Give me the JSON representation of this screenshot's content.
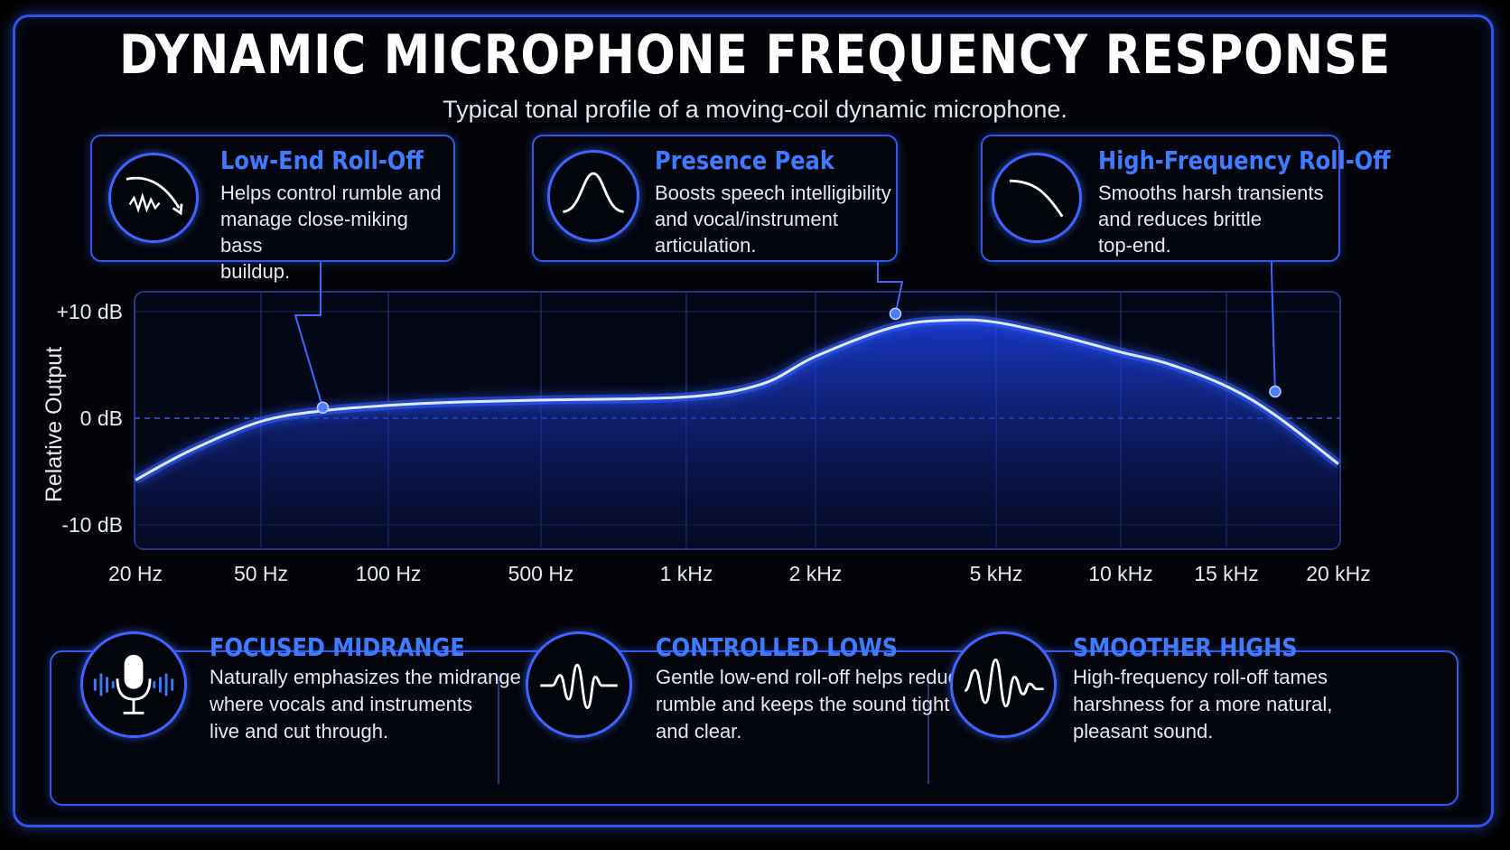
{
  "title": "DYNAMIC MICROPHONE FREQUENCY RESPONSE",
  "subtitle": "Typical tonal profile of a moving-coil dynamic microphone.",
  "callouts": [
    {
      "title": "Low-End Roll-Off",
      "text": "Helps control rumble and\nmanage close-miking bass\nbuildup.",
      "icon": "downward-wave-icon"
    },
    {
      "title": "Presence Peak",
      "text": "Boosts speech intelligibility\nand vocal/instrument\narticulation.",
      "icon": "bell-curve-icon"
    },
    {
      "title": "High-Frequency Roll-Off",
      "text": "Smooths harsh transients\nand reduces brittle\ntop-end.",
      "icon": "falling-curve-icon"
    }
  ],
  "benefits": [
    {
      "title": "FOCUSED MIDRANGE",
      "text": "Naturally emphasizes the midrange\nwhere vocals and instruments\nlive and cut through.",
      "icon": "microphone-icon"
    },
    {
      "title": "CONTROLLED LOWS",
      "text": "Gentle low-end roll-off helps reduce\nrumble and keeps the sound tight\nand clear.",
      "icon": "waveform-icon"
    },
    {
      "title": "SMOOTHER HIGHS",
      "text": "High-frequency roll-off tames\nharshness for a more natural,\npleasant sound.",
      "icon": "decaying-wave-icon"
    }
  ],
  "colors": {
    "accent": "#3f7bff",
    "curve": "#2a5bff",
    "background": "#000000"
  },
  "chart_data": {
    "type": "line",
    "ylabel": "Relative Output",
    "xlabel": "",
    "x_tick_labels": [
      "20 Hz",
      "50 Hz",
      "100 Hz",
      "500 Hz",
      "1 kHz",
      "2 kHz",
      "5 kHz",
      "10 kHz",
      "15 kHz",
      "20 kHz"
    ],
    "y_tick_labels": [
      "+10 dB",
      "0 dB",
      "-10 dB"
    ],
    "y_ticks": [
      10,
      0,
      -10
    ],
    "ylim": [
      -12,
      12
    ],
    "series": [
      {
        "x": [
          "20 Hz",
          "30 Hz",
          "50 Hz",
          "70 Hz",
          "100 Hz",
          "200 Hz",
          "500 Hz",
          "1 kHz",
          "1.5 kHz",
          "2 kHz",
          "3 kHz",
          "4 kHz",
          "5 kHz",
          "7 kHz",
          "10 kHz",
          "12 kHz",
          "15 kHz",
          "17 kHz",
          "20 kHz"
        ],
        "values": [
          -5.8,
          -3.0,
          -0.3,
          0.7,
          1.2,
          1.5,
          1.7,
          2.0,
          3.2,
          5.8,
          8.6,
          9.2,
          9.0,
          7.8,
          6.2,
          5.1,
          3.0,
          0.3,
          -4.3
        ]
      }
    ],
    "markers": [
      {
        "x": "70 Hz",
        "y": 1.0,
        "label": "Low-End Roll-Off"
      },
      {
        "x": "3 kHz",
        "y": 9.8,
        "label": "Presence Peak"
      },
      {
        "x": "17 kHz",
        "y": 2.5,
        "label": "High-Frequency Roll-Off"
      }
    ],
    "grid": true,
    "zero_line": "dashed",
    "legend": "none"
  }
}
